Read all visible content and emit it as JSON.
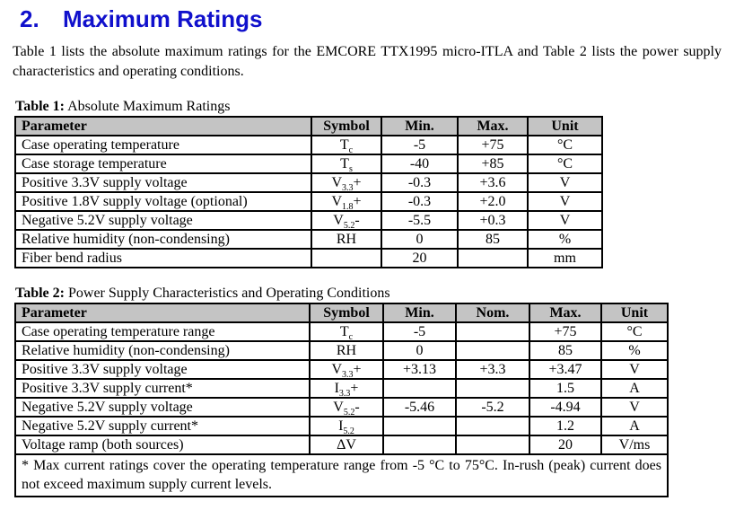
{
  "heading": {
    "number": "2.",
    "title": "Maximum Ratings"
  },
  "intro": "Table 1 lists the absolute maximum ratings for the EMCORE TTX1995 micro-ITLA and Table 2 lists the power supply characteristics and operating conditions.",
  "colors": {
    "heading": "#1010cc",
    "table_header_bg": "#c4c4c4",
    "border": "#000000"
  },
  "tables": [
    {
      "caption_label": "Table 1:",
      "caption_text": " Absolute Maximum Ratings",
      "columns": [
        "Parameter",
        "Symbol",
        "Min.",
        "Max.",
        "Unit"
      ],
      "rows": [
        {
          "param": "Case operating temperature",
          "symbol": {
            "base": "T",
            "sub": "c",
            "suffix": ""
          },
          "values": [
            "-5",
            "+75",
            "°C"
          ]
        },
        {
          "param": "Case storage temperature",
          "symbol": {
            "base": "T",
            "sub": "s",
            "suffix": ""
          },
          "values": [
            "-40",
            "+85",
            "°C"
          ]
        },
        {
          "param": "Positive 3.3V supply voltage",
          "symbol": {
            "base": "V",
            "sub": "3.3",
            "suffix": "+"
          },
          "values": [
            "-0.3",
            "+3.6",
            "V"
          ]
        },
        {
          "param": "Positive 1.8V supply voltage (optional)",
          "symbol": {
            "base": "V",
            "sub": "1.8",
            "suffix": "+"
          },
          "values": [
            "-0.3",
            "+2.0",
            "V"
          ]
        },
        {
          "param": "Negative 5.2V supply voltage",
          "symbol": {
            "base": "V",
            "sub": "5.2",
            "suffix": "-"
          },
          "values": [
            "-5.5",
            "+0.3",
            "V"
          ]
        },
        {
          "param": "Relative humidity (non-condensing)",
          "symbol": {
            "base": "RH",
            "sub": "",
            "suffix": ""
          },
          "values": [
            "0",
            "85",
            "%"
          ]
        },
        {
          "param": "Fiber bend radius",
          "symbol": {
            "base": "",
            "sub": "",
            "suffix": ""
          },
          "values": [
            "20",
            "",
            "mm"
          ]
        }
      ]
    },
    {
      "caption_label": "Table 2:",
      "caption_text": " Power Supply Characteristics and Operating Conditions",
      "columns": [
        "Parameter",
        "Symbol",
        "Min.",
        "Nom.",
        "Max.",
        "Unit"
      ],
      "rows": [
        {
          "param": "Case operating temperature range",
          "symbol": {
            "base": "T",
            "sub": "c",
            "suffix": ""
          },
          "values": [
            "-5",
            "",
            "+75",
            "°C"
          ]
        },
        {
          "param": "Relative humidity (non-condensing)",
          "symbol": {
            "base": "RH",
            "sub": "",
            "suffix": ""
          },
          "values": [
            "0",
            "",
            "85",
            "%"
          ]
        },
        {
          "param": "Positive 3.3V supply voltage",
          "symbol": {
            "base": "V",
            "sub": "3.3",
            "suffix": "+"
          },
          "values": [
            "+3.13",
            "+3.3",
            "+3.47",
            "V"
          ]
        },
        {
          "param": "Positive 3.3V supply current*",
          "symbol": {
            "base": "I",
            "sub": "3.3",
            "suffix": "+"
          },
          "values": [
            "",
            "",
            "1.5",
            "A"
          ]
        },
        {
          "param": "Negative 5.2V supply voltage",
          "symbol": {
            "base": "V",
            "sub": "5.2",
            "suffix": "-"
          },
          "values": [
            "-5.46",
            "-5.2",
            "-4.94",
            "V"
          ]
        },
        {
          "param": "Negative 5.2V supply current*",
          "symbol": {
            "base": "I",
            "sub": "5.2",
            "suffix": ""
          },
          "values": [
            "",
            "",
            "1.2",
            "A"
          ]
        },
        {
          "param": "Voltage ramp (both sources)",
          "symbol": {
            "base": "ΔV",
            "sub": "",
            "suffix": ""
          },
          "values": [
            "",
            "",
            "20",
            "V/ms"
          ]
        }
      ],
      "footnote": "* Max current ratings cover the operating temperature range from -5 °C to 75°C. In-rush (peak) current does not exceed maximum supply current levels."
    }
  ]
}
